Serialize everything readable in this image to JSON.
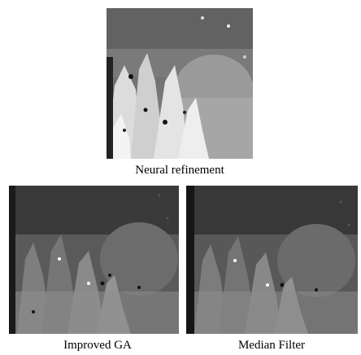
{
  "figure": {
    "top": {
      "caption": "Neural refinement"
    },
    "bottom_left": {
      "caption": "Improved GA"
    },
    "bottom_right": {
      "caption": "Median Filter"
    }
  },
  "colors": {
    "background": "#ffffff",
    "dark_gray": "#3c3c3c",
    "mid_gray": "#777777",
    "light_gray": "#a8a8a8",
    "near_white": "#dedede"
  }
}
